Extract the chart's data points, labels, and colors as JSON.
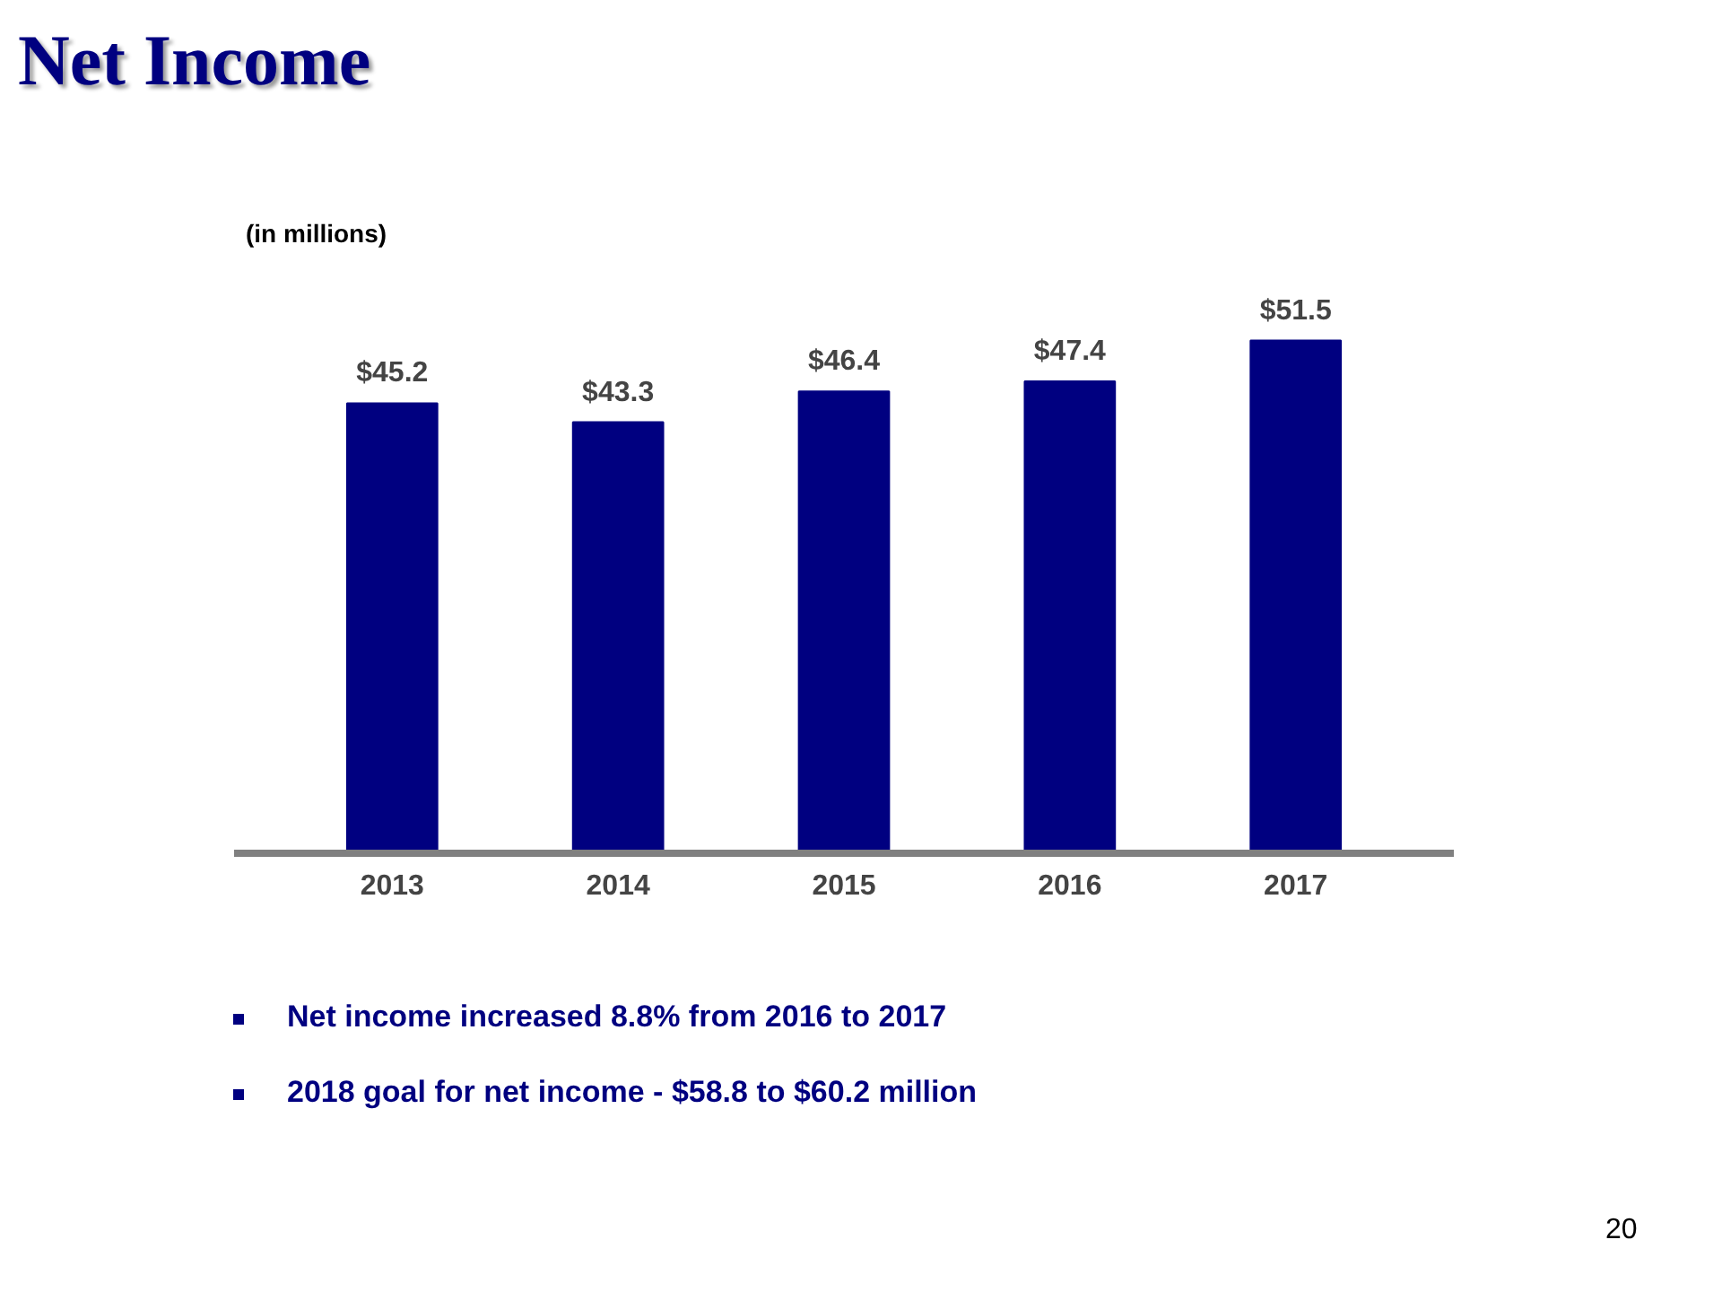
{
  "chart_data": {
    "type": "bar",
    "title": "Net Income",
    "subtitle": "(in millions)",
    "categories": [
      "2013",
      "2014",
      "2015",
      "2016",
      "2017"
    ],
    "values": [
      45.2,
      43.3,
      46.4,
      47.4,
      51.5
    ],
    "value_labels": [
      "$45.2",
      "$43.3",
      "$46.4",
      "$47.4",
      "$51.5"
    ],
    "color": "#000080",
    "grid": false,
    "annotations": [
      "Net income increased 8.8% from 2016 to 2017",
      "2018 goal for net income - $58.8 to $60.2 million",
      "20"
    ]
  }
}
